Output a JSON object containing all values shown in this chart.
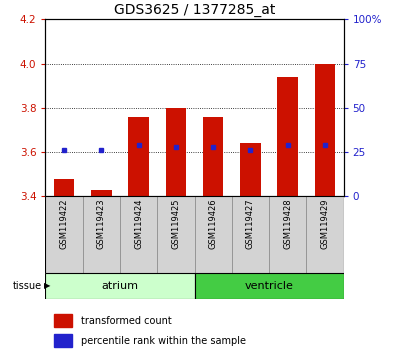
{
  "title": "GDS3625 / 1377285_at",
  "samples": [
    "GSM119422",
    "GSM119423",
    "GSM119424",
    "GSM119425",
    "GSM119426",
    "GSM119427",
    "GSM119428",
    "GSM119429"
  ],
  "bar_bottoms": [
    3.4,
    3.4,
    3.4,
    3.4,
    3.4,
    3.4,
    3.4,
    3.4
  ],
  "bar_tops": [
    3.48,
    3.43,
    3.76,
    3.8,
    3.76,
    3.64,
    3.94,
    4.0
  ],
  "percentile_ranks": [
    26,
    26,
    29,
    28,
    28,
    26,
    29,
    29
  ],
  "bar_color": "#cc1100",
  "dot_color": "#2222cc",
  "ylim": [
    3.4,
    4.2
  ],
  "y2lim": [
    0,
    100
  ],
  "yticks": [
    3.4,
    3.6,
    3.8,
    4.0,
    4.2
  ],
  "y2ticks": [
    0,
    25,
    50,
    75,
    100
  ],
  "y2ticklabels": [
    "0",
    "25",
    "50",
    "75",
    "100%"
  ],
  "grid_ticks": [
    3.6,
    3.8,
    4.0
  ],
  "tissue_label": "tissue",
  "atrium_color": "#ccffcc",
  "ventricle_color": "#44cc44",
  "legend_items": [
    {
      "label": "transformed count",
      "color": "#cc1100"
    },
    {
      "label": "percentile rank within the sample",
      "color": "#2222cc"
    }
  ],
  "bg_color": "#ffffff",
  "label_area_color": "#d3d3d3",
  "bar_width": 0.55,
  "title_fontsize": 10,
  "tick_fontsize": 7.5,
  "sample_fontsize": 6,
  "legend_fontsize": 7,
  "tissue_fontsize": 8
}
